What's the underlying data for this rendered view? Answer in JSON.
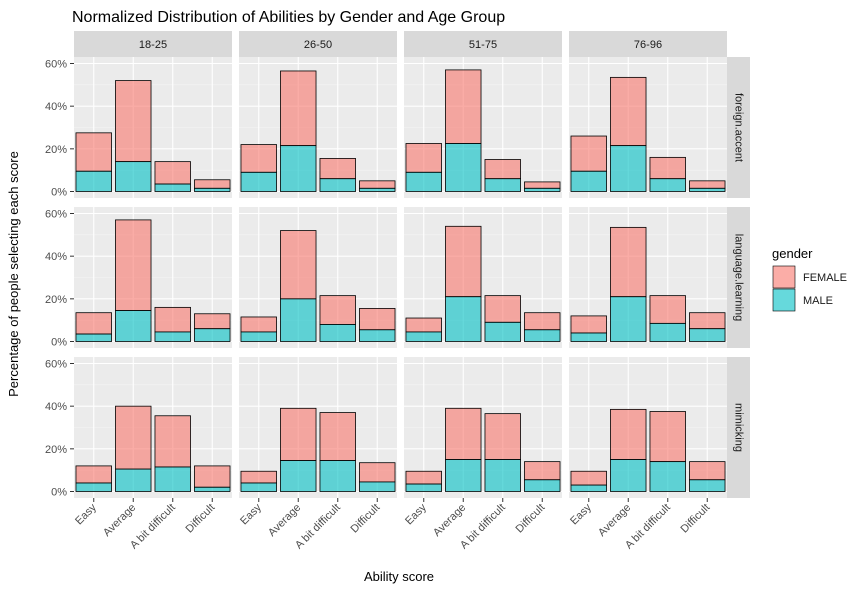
{
  "chart_data": {
    "type": "bar",
    "title": "Normalized Distribution of Abilities by Gender and Age Group",
    "xlabel": "Ability score",
    "ylabel": "Percentage of people selecting each score",
    "categories": [
      "Easy",
      "Average",
      "A bit difficult",
      "Difficult"
    ],
    "y_ticks": [
      "0%",
      "20%",
      "40%",
      "60%"
    ],
    "ylim": [
      0,
      60
    ],
    "grid": true,
    "stacked": true,
    "legend": {
      "title": "gender",
      "position": "right",
      "entries": [
        {
          "name": "FEMALE",
          "color": "#F8766D"
        },
        {
          "name": "MALE",
          "color": "#00BFC4"
        }
      ]
    },
    "columns": [
      "18-25",
      "26-50",
      "51-75",
      "76-96"
    ],
    "rows": [
      "foreign.accent",
      "language.learning",
      "mimicking"
    ],
    "panels": [
      {
        "row": "foreign.accent",
        "col": "18-25",
        "female": [
          18,
          38,
          10.5,
          4
        ],
        "male": [
          9.5,
          14,
          3.5,
          1.5
        ]
      },
      {
        "row": "foreign.accent",
        "col": "26-50",
        "female": [
          13,
          35,
          9.5,
          3.5
        ],
        "male": [
          9,
          21.5,
          6,
          1.5
        ]
      },
      {
        "row": "foreign.accent",
        "col": "51-75",
        "female": [
          13.5,
          34.5,
          9,
          3
        ],
        "male": [
          9,
          22.5,
          6,
          1.5
        ]
      },
      {
        "row": "foreign.accent",
        "col": "76-96",
        "female": [
          16.5,
          32,
          10,
          3.5
        ],
        "male": [
          9.5,
          21.5,
          6,
          1.5
        ]
      },
      {
        "row": "language.learning",
        "col": "18-25",
        "female": [
          10,
          42.5,
          11.5,
          7
        ],
        "male": [
          3.5,
          14.5,
          4.5,
          6
        ]
      },
      {
        "row": "language.learning",
        "col": "26-50",
        "female": [
          7,
          32,
          13.5,
          10
        ],
        "male": [
          4.5,
          20,
          8,
          5.5
        ]
      },
      {
        "row": "language.learning",
        "col": "51-75",
        "female": [
          6.5,
          33,
          12.5,
          8
        ],
        "male": [
          4.5,
          21,
          9,
          5.5
        ]
      },
      {
        "row": "language.learning",
        "col": "76-96",
        "female": [
          8,
          32.5,
          13,
          7.5
        ],
        "male": [
          4,
          21,
          8.5,
          6
        ]
      },
      {
        "row": "mimicking",
        "col": "18-25",
        "female": [
          8,
          29.5,
          24,
          10
        ],
        "male": [
          4,
          10.5,
          11.5,
          2
        ]
      },
      {
        "row": "mimicking",
        "col": "26-50",
        "female": [
          5.5,
          24.5,
          22.5,
          9
        ],
        "male": [
          4,
          14.5,
          14.5,
          4.5
        ]
      },
      {
        "row": "mimicking",
        "col": "51-75",
        "female": [
          6,
          24,
          21.5,
          8.5
        ],
        "male": [
          3.5,
          15,
          15,
          5.5
        ]
      },
      {
        "row": "mimicking",
        "col": "76-96",
        "female": [
          6.5,
          23.5,
          23.5,
          8.5
        ],
        "male": [
          3,
          15,
          14,
          5.5
        ]
      }
    ]
  }
}
